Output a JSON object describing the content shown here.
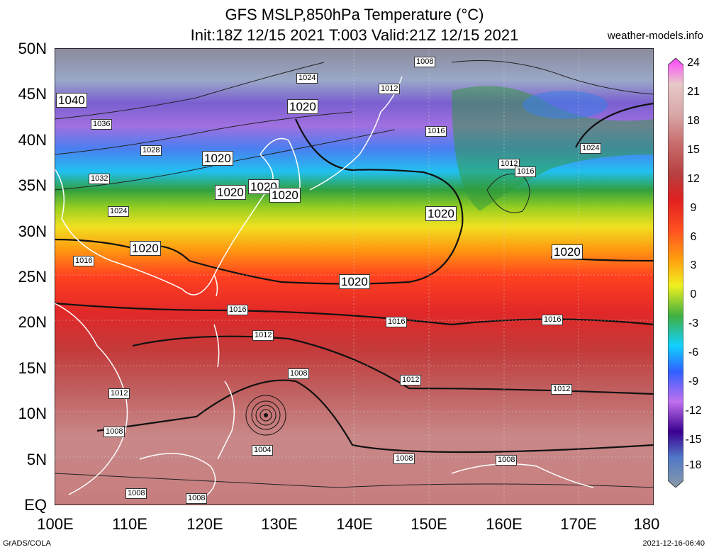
{
  "header": {
    "title": "GFS MSLP,850hPa Temperature (°C)",
    "subtitle": "Init:18Z 12/15 2021 T:003 Valid:21Z 12/15 2021",
    "source": "weather-models.info"
  },
  "axes": {
    "lat_labels": [
      "50N",
      "45N",
      "40N",
      "35N",
      "30N",
      "25N",
      "20N",
      "15N",
      "10N",
      "5N",
      "EQ"
    ],
    "lon_labels": [
      "100E",
      "110E",
      "120E",
      "130E",
      "140E",
      "150E",
      "160E",
      "170E",
      "180"
    ]
  },
  "colorbar": {
    "ticks": [
      "24",
      "21",
      "18",
      "15",
      "12",
      "9",
      "6",
      "3",
      "0",
      "-3",
      "-6",
      "-9",
      "-12",
      "-15",
      "-18"
    ],
    "colors": [
      "#ff66ff",
      "#d9b3b3",
      "#c98c8c",
      "#b34d4d",
      "#d92626",
      "#ff3300",
      "#ff9900",
      "#ffee00",
      "#33aa33",
      "#00ccff",
      "#3366ff",
      "#cc66ff",
      "#330099",
      "#6699cc",
      "#99aab0"
    ]
  },
  "isobars": {
    "bold_labels": [
      "1040",
      "1020",
      "1020",
      "1020",
      "1020",
      "1020",
      "1020",
      "1020",
      "1020",
      "1020"
    ],
    "small_labels": [
      "1008",
      "1024",
      "1012",
      "1036",
      "1016",
      "1028",
      "1012",
      "1016",
      "1024",
      "1032",
      "1024",
      "1016",
      "1016",
      "1016",
      "1016",
      "1012",
      "1012",
      "1012",
      "1008",
      "1012",
      "1008",
      "1004",
      "1008",
      "1008",
      "1008",
      "1008"
    ]
  },
  "footer": {
    "left": "GrADS/COLA",
    "right": "2021-12-16-06:40"
  }
}
